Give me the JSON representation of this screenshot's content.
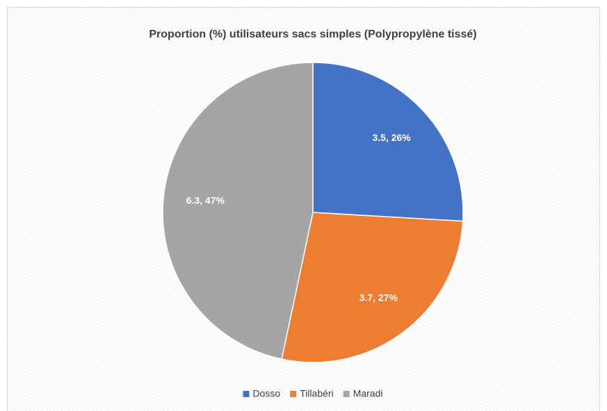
{
  "chart_data": {
    "type": "pie",
    "title": "Proportion (%) utilisateurs sacs simples (Polypropylène tissé)",
    "categories": [
      "Dosso",
      "Tillabéri",
      "Maradi"
    ],
    "values": [
      3.5,
      3.7,
      6.3
    ],
    "value_labels": [
      "3.5, 26%",
      "3.7, 27%",
      "6.3, 47%"
    ],
    "colors": [
      "#4472c4",
      "#ed7d31",
      "#a5a5a5"
    ],
    "legend": "bottom"
  }
}
